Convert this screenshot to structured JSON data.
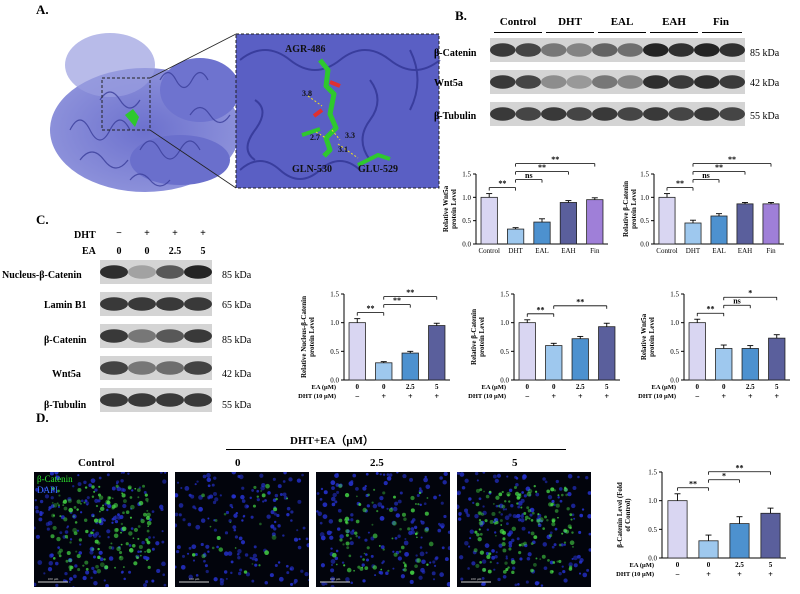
{
  "panels": {
    "a": "A.",
    "b": "B.",
    "c": "C.",
    "d": "D."
  },
  "panel_a": {
    "residues": [
      "AGR-486",
      "GLN-530",
      "GLU-529"
    ],
    "distances": [
      "3.8",
      "3.3",
      "3.1",
      "2.7"
    ],
    "colors": {
      "protein": "#6a6fcc",
      "ligand": "#2ec82e",
      "oxygen": "#e03030"
    }
  },
  "panel_b": {
    "groups": [
      "Control",
      "DHT",
      "EAL",
      "EAH",
      "Fin"
    ],
    "blots": [
      {
        "name": "β-Catenin",
        "kda": "85 kDa",
        "intensity": [
          0.85,
          0.55,
          0.65,
          0.95,
          0.95
        ]
      },
      {
        "name": "Wnt5a",
        "kda": "42 kDa",
        "intensity": [
          0.85,
          0.45,
          0.55,
          0.9,
          0.9
        ]
      },
      {
        "name": "β-Tubulin",
        "kda": "55 kDa",
        "intensity": [
          0.85,
          0.85,
          0.85,
          0.85,
          0.85
        ]
      }
    ]
  },
  "panel_c": {
    "treatment_labels": [
      "DHT",
      "EA"
    ],
    "dht_row": [
      "−",
      "+",
      "+",
      "+"
    ],
    "ea_row": [
      "0",
      "0",
      "2.5",
      "5"
    ],
    "blots": [
      {
        "name": "Nucleus-β-Catenin",
        "kda": "85 kDa",
        "intensity": [
          0.9,
          0.35,
          0.7,
          0.95
        ]
      },
      {
        "name": "Lamin B1",
        "kda": "65 kDa",
        "intensity": [
          0.85,
          0.85,
          0.85,
          0.85
        ]
      },
      {
        "name": "β-Catenin",
        "kda": "85 kDa",
        "intensity": [
          0.85,
          0.55,
          0.7,
          0.85
        ]
      },
      {
        "name": "Wnt5a",
        "kda": "42 kDa",
        "intensity": [
          0.8,
          0.55,
          0.6,
          0.8
        ]
      },
      {
        "name": "β-Tubulin",
        "kda": "55 kDa",
        "intensity": [
          0.85,
          0.85,
          0.85,
          0.85
        ]
      }
    ]
  },
  "panel_d": {
    "header": "DHT+EA（μM）",
    "image_labels": [
      "Control",
      "0",
      "2.5",
      "5"
    ],
    "legend": {
      "green": "β-Catenin",
      "blue": "DAPI"
    },
    "scale_text": "100 μm",
    "density": [
      0.9,
      0.15,
      0.45,
      0.8
    ]
  },
  "chart_data": [
    {
      "type": "bar",
      "ylabel": "Relative Wnt5a protein Level",
      "ylim": [
        0,
        1.5
      ],
      "yticks": [
        "0.0",
        "0.5",
        "1.0",
        "1.5"
      ],
      "categories": [
        "Control",
        "DHT",
        "EAL",
        "EAH",
        "Fin"
      ],
      "values": [
        1.0,
        0.32,
        0.47,
        0.89,
        0.95
      ],
      "errors": [
        0.08,
        0.03,
        0.07,
        0.04,
        0.04
      ],
      "colors": [
        "#d9d6f2",
        "#9ec8ee",
        "#4d91cf",
        "#5a5f9c",
        "#9f7fd8"
      ],
      "significance": [
        {
          "a": 0,
          "b": 1,
          "text": "**"
        },
        {
          "a": 1,
          "b": 2,
          "text": "ns"
        },
        {
          "a": 1,
          "b": 3,
          "text": "**"
        },
        {
          "a": 1,
          "b": 4,
          "text": "**"
        }
      ]
    },
    {
      "type": "bar",
      "ylabel": "Relative β-Catenin protein Level",
      "ylim": [
        0,
        1.5
      ],
      "yticks": [
        "0.0",
        "0.5",
        "1.0",
        "1.5"
      ],
      "categories": [
        "Control",
        "DHT",
        "EAL",
        "EAH",
        "Fin"
      ],
      "values": [
        1.0,
        0.45,
        0.6,
        0.86,
        0.86
      ],
      "errors": [
        0.08,
        0.06,
        0.05,
        0.03,
        0.03
      ],
      "colors": [
        "#d9d6f2",
        "#9ec8ee",
        "#4d91cf",
        "#5a5f9c",
        "#9f7fd8"
      ],
      "significance": [
        {
          "a": 0,
          "b": 1,
          "text": "**"
        },
        {
          "a": 1,
          "b": 2,
          "text": "ns"
        },
        {
          "a": 1,
          "b": 3,
          "text": "**"
        },
        {
          "a": 1,
          "b": 4,
          "text": "**"
        }
      ]
    },
    {
      "type": "bar",
      "ylabel": "Relative Nucleus-β-Catenin protein Level",
      "ylim": [
        0,
        1.5
      ],
      "yticks": [
        "0.0",
        "0.5",
        "1.0",
        "1.5"
      ],
      "categories": [
        "0",
        "0",
        "2.5",
        "5"
      ],
      "row_labels": [
        "EA (μM)",
        "DHT (10 μM)"
      ],
      "dht_row": [
        "−",
        "+",
        "+",
        "+"
      ],
      "values": [
        1.0,
        0.3,
        0.47,
        0.95
      ],
      "errors": [
        0.07,
        0.02,
        0.03,
        0.04
      ],
      "colors": [
        "#d9d6f2",
        "#9ec8ee",
        "#4d91cf",
        "#5a5f9c"
      ],
      "significance": [
        {
          "a": 0,
          "b": 1,
          "text": "**"
        },
        {
          "a": 1,
          "b": 2,
          "text": "**"
        },
        {
          "a": 1,
          "b": 3,
          "text": "**"
        }
      ]
    },
    {
      "type": "bar",
      "ylabel": "Relative β-Catenin protein Level",
      "ylim": [
        0,
        1.5
      ],
      "yticks": [
        "0.0",
        "0.5",
        "1.0",
        "1.5"
      ],
      "categories": [
        "0",
        "0",
        "2.5",
        "5"
      ],
      "row_labels": [
        "EA (μM)",
        "DHT (10 μM)"
      ],
      "dht_row": [
        "−",
        "+",
        "+",
        "+"
      ],
      "values": [
        1.0,
        0.6,
        0.72,
        0.93
      ],
      "errors": [
        0.05,
        0.04,
        0.04,
        0.06
      ],
      "colors": [
        "#d9d6f2",
        "#9ec8ee",
        "#4d91cf",
        "#5a5f9c"
      ],
      "significance": [
        {
          "a": 0,
          "b": 1,
          "text": "**"
        },
        {
          "a": 1,
          "b": 3,
          "text": "**"
        }
      ]
    },
    {
      "type": "bar",
      "ylabel": "Relative Wnt5a protein Level",
      "ylim": [
        0,
        1.5
      ],
      "yticks": [
        "0.0",
        "0.5",
        "1.0",
        "1.5"
      ],
      "categories": [
        "0",
        "0",
        "2.5",
        "5"
      ],
      "row_labels": [
        "EA (μM)",
        "DHT (10 μM)"
      ],
      "dht_row": [
        "−",
        "+",
        "+",
        "+"
      ],
      "values": [
        1.0,
        0.55,
        0.55,
        0.73
      ],
      "errors": [
        0.06,
        0.06,
        0.05,
        0.06
      ],
      "colors": [
        "#d9d6f2",
        "#9ec8ee",
        "#4d91cf",
        "#5a5f9c"
      ],
      "significance": [
        {
          "a": 0,
          "b": 1,
          "text": "**"
        },
        {
          "a": 1,
          "b": 2,
          "text": "ns"
        },
        {
          "a": 1,
          "b": 3,
          "text": "*"
        }
      ]
    },
    {
      "type": "bar",
      "ylabel": "β-Catenin Level (Fold of Control)",
      "ylim": [
        0,
        1.5
      ],
      "yticks": [
        "0.0",
        "0.5",
        "1.0",
        "1.5"
      ],
      "categories": [
        "0",
        "0",
        "2.5",
        "5"
      ],
      "row_labels": [
        "EA (μM)",
        "DHT (10 μM)"
      ],
      "dht_row": [
        "−",
        "+",
        "+",
        "+"
      ],
      "values": [
        1.0,
        0.3,
        0.6,
        0.78
      ],
      "errors": [
        0.12,
        0.1,
        0.12,
        0.09
      ],
      "colors": [
        "#d9d6f2",
        "#9ec8ee",
        "#4d91cf",
        "#5a5f9c"
      ],
      "significance": [
        {
          "a": 0,
          "b": 1,
          "text": "**"
        },
        {
          "a": 1,
          "b": 2,
          "text": "*"
        },
        {
          "a": 1,
          "b": 3,
          "text": "**"
        }
      ]
    }
  ]
}
